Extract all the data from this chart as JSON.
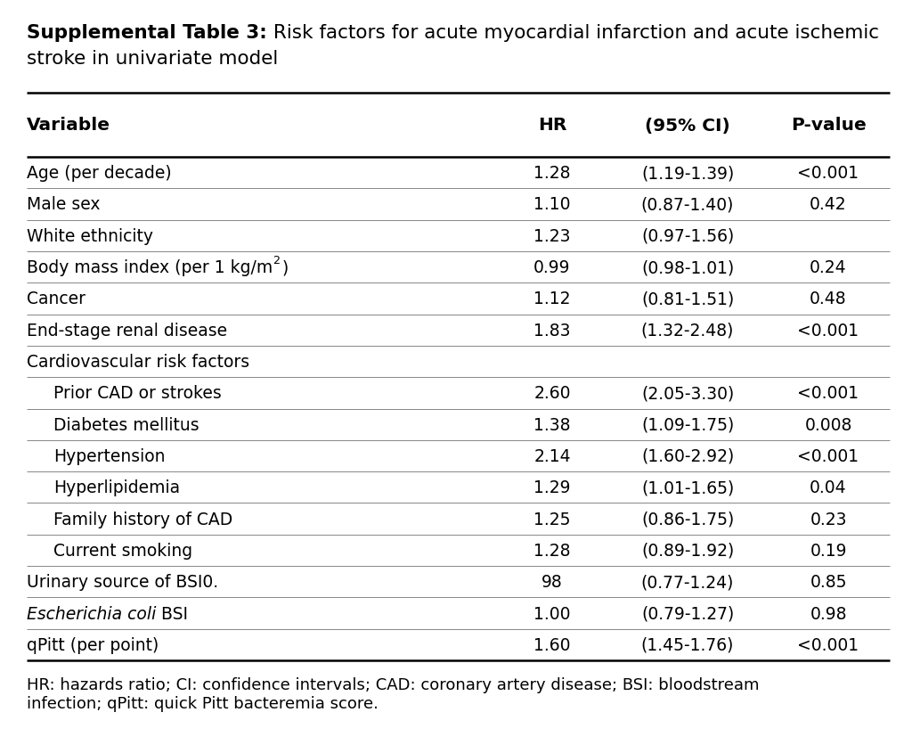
{
  "title_bold": "Supplemental Table 3:",
  "title_rest": " Risk factors for acute myocardial infarction and acute ischemic\nstroke in univariate model",
  "col_headers": [
    "Variable",
    "HR",
    "(95% CI)",
    "P-value"
  ],
  "rows": [
    {
      "variable": "Age (per decade)",
      "hr": "1.28",
      "ci": "(1.19-1.39)",
      "pval": "<0.001",
      "indent": false,
      "italic": false,
      "header_only": false
    },
    {
      "variable": "Male sex",
      "hr": "1.10",
      "ci": "(0.87-1.40)",
      "pval": "0.42",
      "indent": false,
      "italic": false,
      "header_only": false
    },
    {
      "variable": "White ethnicity",
      "hr": "1.23",
      "ci": "(0.97-1.56)",
      "pval": "",
      "indent": false,
      "italic": false,
      "header_only": false
    },
    {
      "variable": "Body mass index (per 1 kg/m)",
      "hr": "0.99",
      "ci": "(0.98-1.01)",
      "pval": "0.24",
      "indent": false,
      "italic": false,
      "header_only": false,
      "superscript": true
    },
    {
      "variable": "Cancer",
      "hr": "1.12",
      "ci": "(0.81-1.51)",
      "pval": "0.48",
      "indent": false,
      "italic": false,
      "header_only": false
    },
    {
      "variable": "End-stage renal disease",
      "hr": "1.83",
      "ci": "(1.32-2.48)",
      "pval": "<0.001",
      "indent": false,
      "italic": false,
      "header_only": false
    },
    {
      "variable": "Cardiovascular risk factors",
      "hr": "",
      "ci": "",
      "pval": "",
      "indent": false,
      "italic": false,
      "header_only": true
    },
    {
      "variable": "Prior CAD or strokes",
      "hr": "2.60",
      "ci": "(2.05-3.30)",
      "pval": "<0.001",
      "indent": true,
      "italic": false,
      "header_only": false
    },
    {
      "variable": "Diabetes mellitus",
      "hr": "1.38",
      "ci": "(1.09-1.75)",
      "pval": "0.008",
      "indent": true,
      "italic": false,
      "header_only": false
    },
    {
      "variable": "Hypertension",
      "hr": "2.14",
      "ci": "(1.60-2.92)",
      "pval": "<0.001",
      "indent": true,
      "italic": false,
      "header_only": false
    },
    {
      "variable": "Hyperlipidemia",
      "hr": "1.29",
      "ci": "(1.01-1.65)",
      "pval": "0.04",
      "indent": true,
      "italic": false,
      "header_only": false
    },
    {
      "variable": "Family history of CAD",
      "hr": "1.25",
      "ci": "(0.86-1.75)",
      "pval": "0.23",
      "indent": true,
      "italic": false,
      "header_only": false
    },
    {
      "variable": "Current smoking",
      "hr": "1.28",
      "ci": "(0.89-1.92)",
      "pval": "0.19",
      "indent": true,
      "italic": false,
      "header_only": false
    },
    {
      "variable": "Urinary source of BSI0.",
      "hr": "98",
      "ci": "(0.77-1.24)",
      "pval": "0.85",
      "indent": false,
      "italic": false,
      "header_only": false
    },
    {
      "variable": "Escherichia coli BSI",
      "hr": "1.00",
      "ci": "(0.79-1.27)",
      "pval": "0.98",
      "indent": false,
      "italic": true,
      "header_only": false
    },
    {
      "variable": "qPitt (per point)",
      "hr": "1.60",
      "ci": "(1.45-1.76)",
      "pval": "<0.001",
      "indent": false,
      "italic": false,
      "header_only": false
    }
  ],
  "footnote_italic": "",
  "footnote": "HR: hazards ratio; CI: confidence intervals; CAD: coronary artery disease; BSI: bloodstream\ninfection; qPitt: quick Pitt bacteremia score.",
  "background_color": "#ffffff",
  "font_size": 13.5,
  "header_font_size": 14.5,
  "title_font_size": 15.5,
  "footnote_font_size": 13.0
}
